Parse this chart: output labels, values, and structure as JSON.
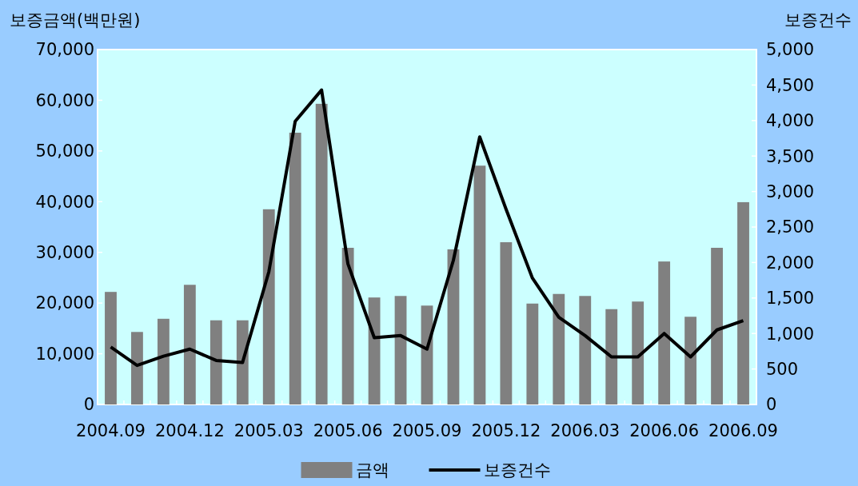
{
  "chart_data": {
    "type": "bar",
    "ylabel": "보증금액(백만원)",
    "y2label": "보증건수",
    "categories": [
      "2004.09",
      null,
      null,
      "2004.12",
      null,
      null,
      "2005.03",
      null,
      null,
      "2005.06",
      null,
      null,
      "2005.09",
      null,
      null,
      "2005.12",
      null,
      null,
      "2006.03",
      null,
      null,
      "2006.06",
      null,
      null,
      "2006.09"
    ],
    "series": [
      {
        "name": "금액",
        "color": "#808080",
        "values": [
          22200,
          14300,
          16900,
          23600,
          16600,
          16600,
          38500,
          53600,
          59300,
          30900,
          21100,
          21400,
          19500,
          30600,
          47100,
          32000,
          19900,
          21800,
          21400,
          18800,
          20300,
          28200,
          17300,
          30900,
          39900
        ]
      },
      {
        "name": "보증건수",
        "type": "line",
        "axis": "y2",
        "color": "#000000",
        "values": [
          810,
          550,
          680,
          780,
          620,
          590,
          1870,
          3990,
          4430,
          1980,
          940,
          970,
          780,
          2030,
          3770,
          2750,
          1780,
          1230,
          970,
          670,
          670,
          1000,
          670,
          1050,
          1180
        ]
      }
    ],
    "ylim": [
      0,
      70000
    ],
    "yticks": [
      {
        "value": 0,
        "label": "0"
      },
      {
        "value": 10000,
        "label": "10,000"
      },
      {
        "value": 20000,
        "label": "20,000"
      },
      {
        "value": 30000,
        "label": "30,000"
      },
      {
        "value": 40000,
        "label": "40,000"
      },
      {
        "value": 50000,
        "label": "50,000"
      },
      {
        "value": 60000,
        "label": "60,000"
      },
      {
        "value": 70000,
        "label": "70,000"
      }
    ],
    "y2lim": [
      0,
      5000
    ],
    "y2ticks": [
      {
        "value": 0,
        "label": "0"
      },
      {
        "value": 500,
        "label": "500"
      },
      {
        "value": 1000,
        "label": "1,000"
      },
      {
        "value": 1500,
        "label": "1,500"
      },
      {
        "value": 2000,
        "label": "2,000"
      },
      {
        "value": 2500,
        "label": "2,500"
      },
      {
        "value": 3000,
        "label": "3,000"
      },
      {
        "value": 3500,
        "label": "3,500"
      },
      {
        "value": 4000,
        "label": "4,000"
      },
      {
        "value": 4500,
        "label": "4,500"
      },
      {
        "value": 5000,
        "label": "5,000"
      }
    ],
    "legend": "bottom",
    "marker": "none",
    "line_style": "solid"
  }
}
